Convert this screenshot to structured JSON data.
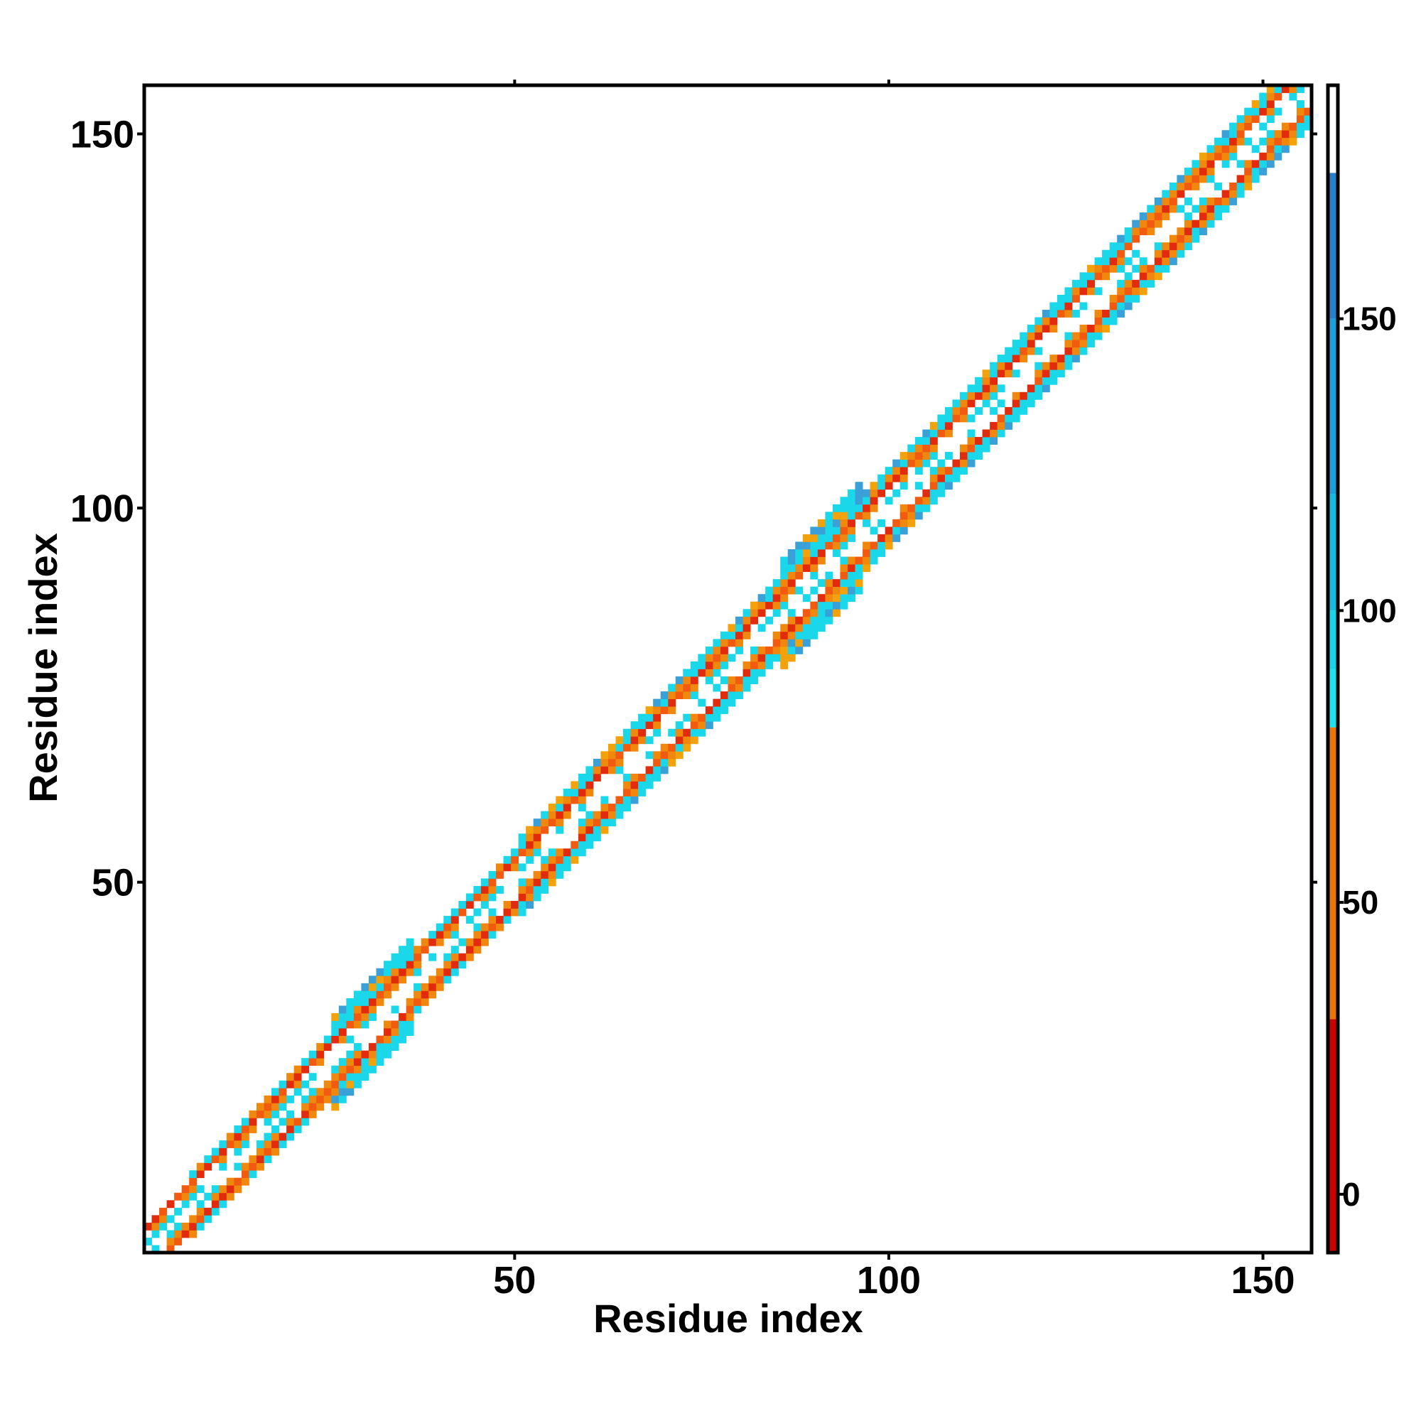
{
  "chart_data": {
    "type": "heatmap",
    "title": "",
    "xlabel": "Residue index",
    "ylabel": "Residue index",
    "xlim": [
      1,
      156
    ],
    "ylim": [
      1,
      156
    ],
    "x_ticks": [
      50,
      100,
      150
    ],
    "y_ticks": [
      50,
      100,
      150
    ],
    "colorbar": {
      "range": [
        -10,
        190
      ],
      "ticks": [
        0,
        50,
        100,
        150
      ],
      "bands": [
        {
          "from": -10,
          "to": 30,
          "color": "#cc0000"
        },
        {
          "from": 30,
          "to": 80,
          "color": "#e8760f"
        },
        {
          "from": 80,
          "to": 90,
          "color": "#1ee0ee"
        },
        {
          "from": 90,
          "to": 100,
          "color": "#18d4ea"
        },
        {
          "from": 100,
          "to": 120,
          "color": "#17b9df"
        },
        {
          "from": 120,
          "to": 150,
          "color": "#1f9fd6"
        },
        {
          "from": 150,
          "to": 175,
          "color": "#2c7fc7"
        },
        {
          "from": 175,
          "to": 190,
          "color": "#ffffff"
        }
      ]
    },
    "band": {
      "diagonal_offset": 5,
      "half_width_by_residue": [
        {
          "from": 1,
          "to": 6,
          "half_width": 3
        },
        {
          "from": 7,
          "to": 25,
          "half_width": 4
        },
        {
          "from": 26,
          "to": 36,
          "half_width": 6
        },
        {
          "from": 37,
          "to": 50,
          "half_width": 4
        },
        {
          "from": 51,
          "to": 85,
          "half_width": 5
        },
        {
          "from": 86,
          "to": 96,
          "half_width": 7
        },
        {
          "from": 97,
          "to": 110,
          "half_width": 5
        },
        {
          "from": 111,
          "to": 156,
          "half_width": 5
        }
      ]
    },
    "cell_colors": {
      "red": "#e12b0c",
      "orange_red": "#f25a10",
      "orange": "#f0880e",
      "amber": "#f4a20a",
      "cyan": "#1ad7ea",
      "blue": "#3aa0d8",
      "white": "#ffffff"
    }
  }
}
